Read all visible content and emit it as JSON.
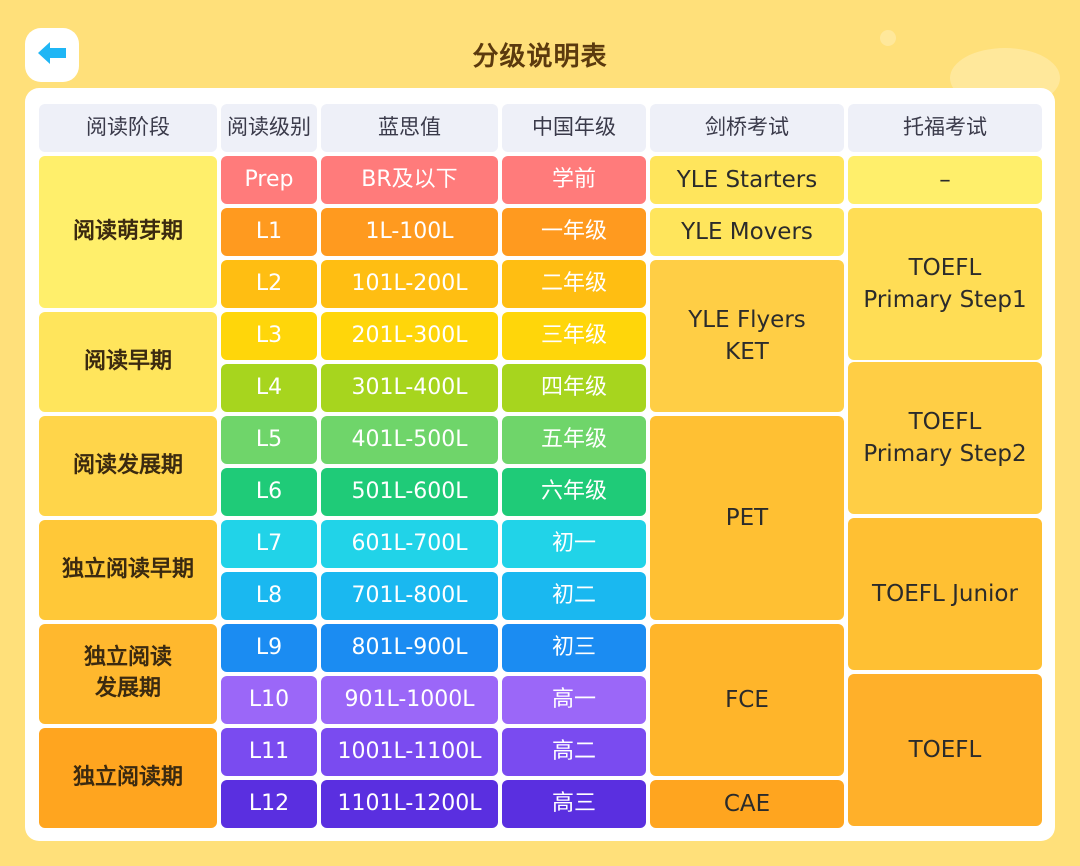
{
  "app": {
    "title": "分级说明表"
  },
  "back_icon": "back-arrow-icon",
  "headers": [
    "阅读阶段",
    "阅读级别",
    "蓝思值",
    "中国年级",
    "剑桥考试",
    "托福考试"
  ],
  "stages": [
    {
      "label": "阅读萌芽期",
      "color": "#FFEF6B"
    },
    {
      "label": "阅读早期",
      "color": "#FFE55C"
    },
    {
      "label": "阅读发展期",
      "color": "#FFD54A"
    },
    {
      "label": "独立阅读早期",
      "color": "#FFC838"
    },
    {
      "label": "独立阅读\n发展期",
      "color": "#FFB82E"
    },
    {
      "label": "独立阅读期",
      "color": "#FFA51F"
    }
  ],
  "levels": [
    {
      "level": "Prep",
      "lexile": "BR及以下",
      "grade": "学前",
      "color": "#FF7B7B"
    },
    {
      "level": "L1",
      "lexile": "1L-100L",
      "grade": "一年级",
      "color": "#FF9A1F"
    },
    {
      "level": "L2",
      "lexile": "101L-200L",
      "grade": "二年级",
      "color": "#FFBE12"
    },
    {
      "level": "L3",
      "lexile": "201L-300L",
      "grade": "三年级",
      "color": "#FFD60A"
    },
    {
      "level": "L4",
      "lexile": "301L-400L",
      "grade": "四年级",
      "color": "#A7D51E"
    },
    {
      "level": "L5",
      "lexile": "401L-500L",
      "grade": "五年级",
      "color": "#6FD56A"
    },
    {
      "level": "L6",
      "lexile": "501L-600L",
      "grade": "六年级",
      "color": "#1FCB78"
    },
    {
      "level": "L7",
      "lexile": "601L-700L",
      "grade": "初一",
      "color": "#21D3E8"
    },
    {
      "level": "L8",
      "lexile": "701L-800L",
      "grade": "初二",
      "color": "#1AB8F0"
    },
    {
      "level": "L9",
      "lexile": "801L-900L",
      "grade": "初三",
      "color": "#1B8CF2"
    },
    {
      "level": "L10",
      "lexile": "901L-1000L",
      "grade": "高一",
      "color": "#9B67F8"
    },
    {
      "level": "L11",
      "lexile": "1001L-1100L",
      "grade": "高二",
      "color": "#7A4BF0"
    },
    {
      "level": "L12",
      "lexile": "1101L-1200L",
      "grade": "高三",
      "color": "#5A2FE0"
    }
  ],
  "cambridge": [
    {
      "label": "YLE Starters",
      "color": "#FFE55C"
    },
    {
      "label": "YLE Movers",
      "color": "#FFE55C"
    },
    {
      "label": "YLE Flyers\nKET",
      "color": "#FFCE45"
    },
    {
      "label": "PET",
      "color": "#FFC033"
    },
    {
      "label": "FCE",
      "color": "#FFB52A"
    },
    {
      "label": "CAE",
      "color": "#FFA51F"
    }
  ],
  "toefl": [
    {
      "label": "–",
      "color": "#FFEF6B"
    },
    {
      "label": "TOEFL\nPrimary Step1",
      "color": "#FFDD55"
    },
    {
      "label": "TOEFL\nPrimary Step2",
      "color": "#FFCE45"
    },
    {
      "label": "TOEFL Junior",
      "color": "#FFC033"
    },
    {
      "label": "TOEFL",
      "color": "#FFB02A"
    }
  ]
}
